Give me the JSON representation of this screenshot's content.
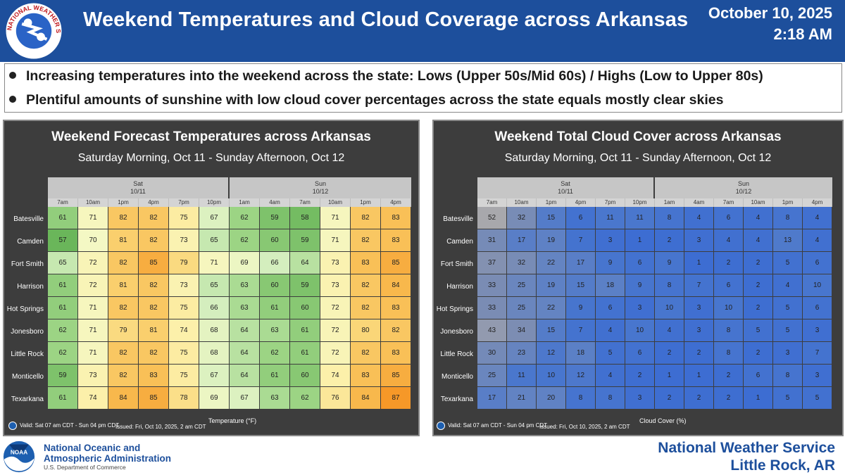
{
  "header": {
    "title": "Weekend Temperatures and Cloud Coverage across Arkansas",
    "date": "October 10, 2025",
    "time": "2:18 AM",
    "logo_text": "NATIONAL WEATHER SERVICE"
  },
  "bullets": [
    "Increasing temperatures into the weekend across the state: Lows (Upper 50s/Mid 60s) / Highs (Low to Upper 80s)",
    "Plentiful amounts of sunshine with low cloud cover percentages across the state equals mostly clear skies"
  ],
  "colors": {
    "header_bg": "#1d4f9c",
    "panel_bg": "#3d3d3d"
  },
  "chart_data": [
    {
      "type": "heatmap",
      "title": "Weekend Forecast Temperatures across Arkansas",
      "subtitle": "Saturday Morning, Oct 11 - Sunday Afternoon, Oct 12",
      "days": [
        {
          "name": "Sat",
          "date": "10/11"
        },
        {
          "name": "Sun",
          "date": "10/12"
        }
      ],
      "times": [
        "7am",
        "10am",
        "1pm",
        "4pm",
        "7pm",
        "10pm",
        "1am",
        "4am",
        "7am",
        "10am",
        "1pm",
        "4pm"
      ],
      "rows": [
        "Batesville",
        "Camden",
        "Fort Smith",
        "Harrison",
        "Hot Springs",
        "Jonesboro",
        "Little Rock",
        "Monticello",
        "Texarkana"
      ],
      "values": [
        [
          61,
          71,
          82,
          82,
          75,
          67,
          62,
          59,
          58,
          71,
          82,
          83
        ],
        [
          57,
          70,
          81,
          82,
          73,
          65,
          62,
          60,
          59,
          71,
          82,
          83
        ],
        [
          65,
          72,
          82,
          85,
          79,
          71,
          69,
          66,
          64,
          73,
          83,
          85
        ],
        [
          61,
          72,
          81,
          82,
          73,
          65,
          63,
          60,
          59,
          73,
          82,
          84
        ],
        [
          61,
          71,
          82,
          82,
          75,
          66,
          63,
          61,
          60,
          72,
          82,
          83
        ],
        [
          62,
          71,
          79,
          81,
          74,
          68,
          64,
          63,
          61,
          72,
          80,
          82
        ],
        [
          62,
          71,
          82,
          82,
          75,
          68,
          64,
          62,
          61,
          72,
          82,
          83
        ],
        [
          59,
          73,
          82,
          83,
          75,
          67,
          64,
          61,
          60,
          74,
          83,
          85
        ],
        [
          61,
          74,
          84,
          85,
          78,
          69,
          67,
          63,
          62,
          76,
          84,
          87
        ]
      ],
      "legend_label": "Temperature (°F)",
      "valid": "Valid: Sat 07 am CDT - Sun 04 pm CDT",
      "issued": "Issued: Fri, Oct 10, 2025, 2 am CDT"
    },
    {
      "type": "heatmap",
      "title": "Weekend Total Cloud Cover across Arkansas",
      "subtitle": "Saturday Morning, Oct 11 - Sunday Afternoon, Oct 12",
      "days": [
        {
          "name": "Sat",
          "date": "10/11"
        },
        {
          "name": "Sun",
          "date": "10/12"
        }
      ],
      "times": [
        "7am",
        "10am",
        "1pm",
        "4pm",
        "7pm",
        "10pm",
        "1am",
        "4am",
        "7am",
        "10am",
        "1pm",
        "4pm"
      ],
      "rows": [
        "Batesville",
        "Camden",
        "Fort Smith",
        "Harrison",
        "Hot Springs",
        "Jonesboro",
        "Little Rock",
        "Monticello",
        "Texarkana"
      ],
      "values": [
        [
          52,
          32,
          15,
          6,
          11,
          11,
          8,
          4,
          6,
          4,
          8,
          4
        ],
        [
          31,
          17,
          19,
          7,
          3,
          1,
          2,
          3,
          4,
          4,
          13,
          4
        ],
        [
          37,
          32,
          22,
          17,
          9,
          6,
          9,
          1,
          2,
          2,
          5,
          6
        ],
        [
          33,
          25,
          19,
          15,
          18,
          9,
          8,
          7,
          6,
          2,
          4,
          10
        ],
        [
          33,
          25,
          22,
          9,
          6,
          3,
          10,
          3,
          10,
          2,
          5,
          6
        ],
        [
          43,
          34,
          15,
          7,
          4,
          10,
          4,
          3,
          8,
          5,
          5,
          3
        ],
        [
          30,
          23,
          12,
          18,
          5,
          6,
          2,
          2,
          8,
          2,
          3,
          7
        ],
        [
          25,
          11,
          10,
          12,
          4,
          2,
          1,
          1,
          2,
          6,
          8,
          3
        ],
        [
          17,
          21,
          20,
          8,
          8,
          3,
          2,
          2,
          2,
          1,
          5,
          5
        ]
      ],
      "legend_label": "Cloud Cover (%)",
      "valid": "Valid: Sat 07 am CDT - Sun 04 pm CDT",
      "issued": "Issued: Fri, Oct 10, 2025, 2 am CDT"
    }
  ],
  "footer": {
    "noaa_line1": "National Oceanic and",
    "noaa_line2": "Atmospheric Administration",
    "noaa_dept": "U.S. Department of Commerce",
    "noaa_logo_text": "NOAA",
    "office_line1": "National Weather Service",
    "office_line2": "Little Rock, AR"
  }
}
